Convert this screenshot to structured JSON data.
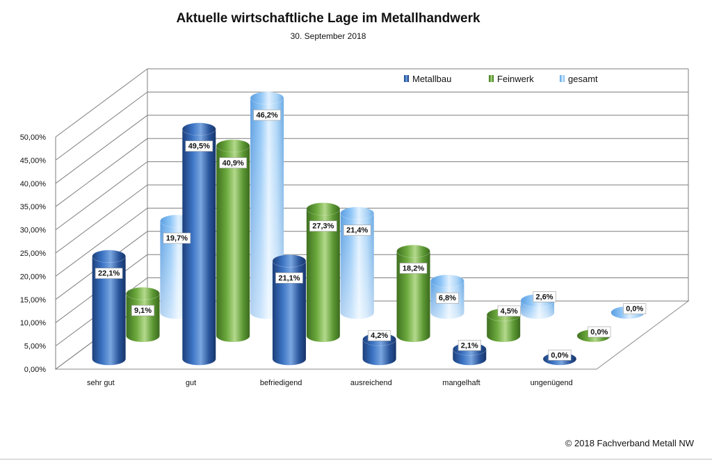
{
  "header": {
    "title": "Aktuelle wirtschaftliche Lage im Metallhandwerk",
    "subtitle": "30. September 2018"
  },
  "footer": {
    "copyright": "© 2018 Fachverband Metall NW"
  },
  "colors": {
    "Metallbau": "#2f5fa8",
    "Feinwerk": "#5e9a35",
    "gesamt": "#6eaee8"
  },
  "chart_data": {
    "type": "bar",
    "title": "Aktuelle wirtschaftliche Lage im Metallhandwerk",
    "subtitle": "30. September 2018",
    "categories": [
      "sehr gut",
      "gut",
      "befriedigend",
      "ausreichend",
      "mangelhaft",
      "ungenügend"
    ],
    "series": [
      {
        "name": "Metallbau",
        "values": [
          22.1,
          49.5,
          21.1,
          4.2,
          2.1,
          0.0
        ],
        "labels": [
          "22,1%",
          "49,5%",
          "21,1%",
          "4,2%",
          "2,1%",
          "0,0%"
        ]
      },
      {
        "name": "Feinwerk",
        "values": [
          9.1,
          40.9,
          27.3,
          18.2,
          4.5,
          0.0
        ],
        "labels": [
          "9,1%",
          "40,9%",
          "27,3%",
          "18,2%",
          "4,5%",
          "0,0%"
        ]
      },
      {
        "name": "gesamt",
        "values": [
          19.7,
          46.2,
          21.4,
          6.8,
          2.6,
          0.0
        ],
        "labels": [
          "19,7%",
          "46,2%",
          "21,4%",
          "6,8%",
          "2,6%",
          "0,0%"
        ]
      }
    ],
    "yticks": [
      "0,00%",
      "5,00%",
      "10,00%",
      "15,00%",
      "20,00%",
      "25,00%",
      "30,00%",
      "35,00%",
      "40,00%",
      "45,00%",
      "50,00%"
    ],
    "ylim": [
      0,
      50
    ],
    "grid": true,
    "legend": "top-right",
    "style": "3d-cylinder"
  }
}
